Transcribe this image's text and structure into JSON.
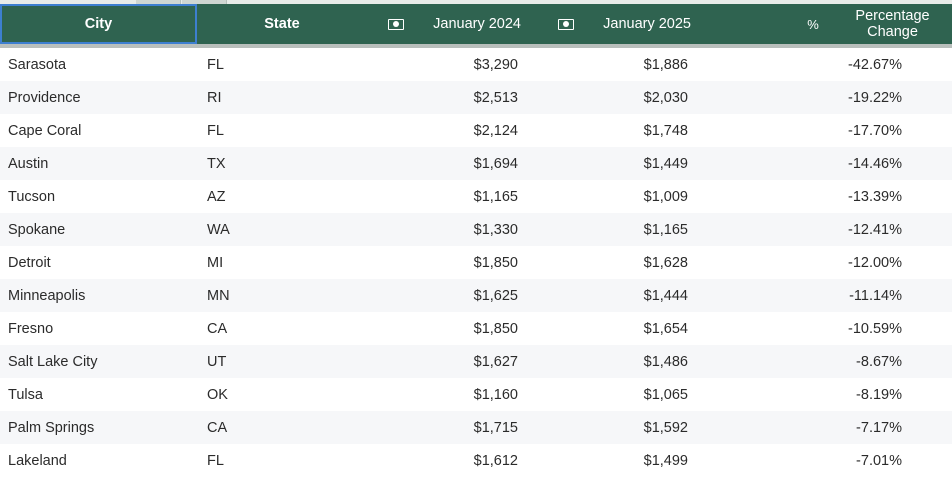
{
  "table": {
    "headers": {
      "city": "City",
      "state": "State",
      "jan2024": "January 2024",
      "jan2024_icon": "money-icon",
      "jan2025": "January 2025",
      "jan2025_icon": "money-icon",
      "pct_icon_glyph": "%",
      "pct_change": "Percentage\nChange"
    },
    "rows": [
      {
        "city": "Sarasota",
        "state": "FL",
        "jan2024": "$3,290",
        "jan2025": "$1,886",
        "pct": "-42.67%"
      },
      {
        "city": "Providence",
        "state": "RI",
        "jan2024": "$2,513",
        "jan2025": "$2,030",
        "pct": "-19.22%"
      },
      {
        "city": "Cape Coral",
        "state": "FL",
        "jan2024": "$2,124",
        "jan2025": "$1,748",
        "pct": "-17.70%"
      },
      {
        "city": "Austin",
        "state": "TX",
        "jan2024": "$1,694",
        "jan2025": "$1,449",
        "pct": "-14.46%"
      },
      {
        "city": "Tucson",
        "state": "AZ",
        "jan2024": "$1,165",
        "jan2025": "$1,009",
        "pct": "-13.39%"
      },
      {
        "city": "Spokane",
        "state": "WA",
        "jan2024": "$1,330",
        "jan2025": "$1,165",
        "pct": "-12.41%"
      },
      {
        "city": "Detroit",
        "state": "MI",
        "jan2024": "$1,850",
        "jan2025": "$1,628",
        "pct": "-12.00%"
      },
      {
        "city": "Minneapolis",
        "state": "MN",
        "jan2024": "$1,625",
        "jan2025": "$1,444",
        "pct": "-11.14%"
      },
      {
        "city": "Fresno",
        "state": "CA",
        "jan2024": "$1,850",
        "jan2025": "$1,654",
        "pct": "-10.59%"
      },
      {
        "city": "Salt Lake City",
        "state": "UT",
        "jan2024": "$1,627",
        "jan2025": "$1,486",
        "pct": "-8.67%"
      },
      {
        "city": "Tulsa",
        "state": "OK",
        "jan2024": "$1,160",
        "jan2025": "$1,065",
        "pct": "-8.19%"
      },
      {
        "city": "Palm Springs",
        "state": "CA",
        "jan2024": "$1,715",
        "jan2025": "$1,592",
        "pct": "-7.17%"
      },
      {
        "city": "Lakeland",
        "state": "FL",
        "jan2024": "$1,612",
        "jan2025": "$1,499",
        "pct": "-7.01%"
      }
    ]
  },
  "colors": {
    "header_bg": "#2f6350",
    "header_text": "#ffffff",
    "selected_outline": "#3d7fd0",
    "row_alt_bg": "#f6f7f9"
  }
}
